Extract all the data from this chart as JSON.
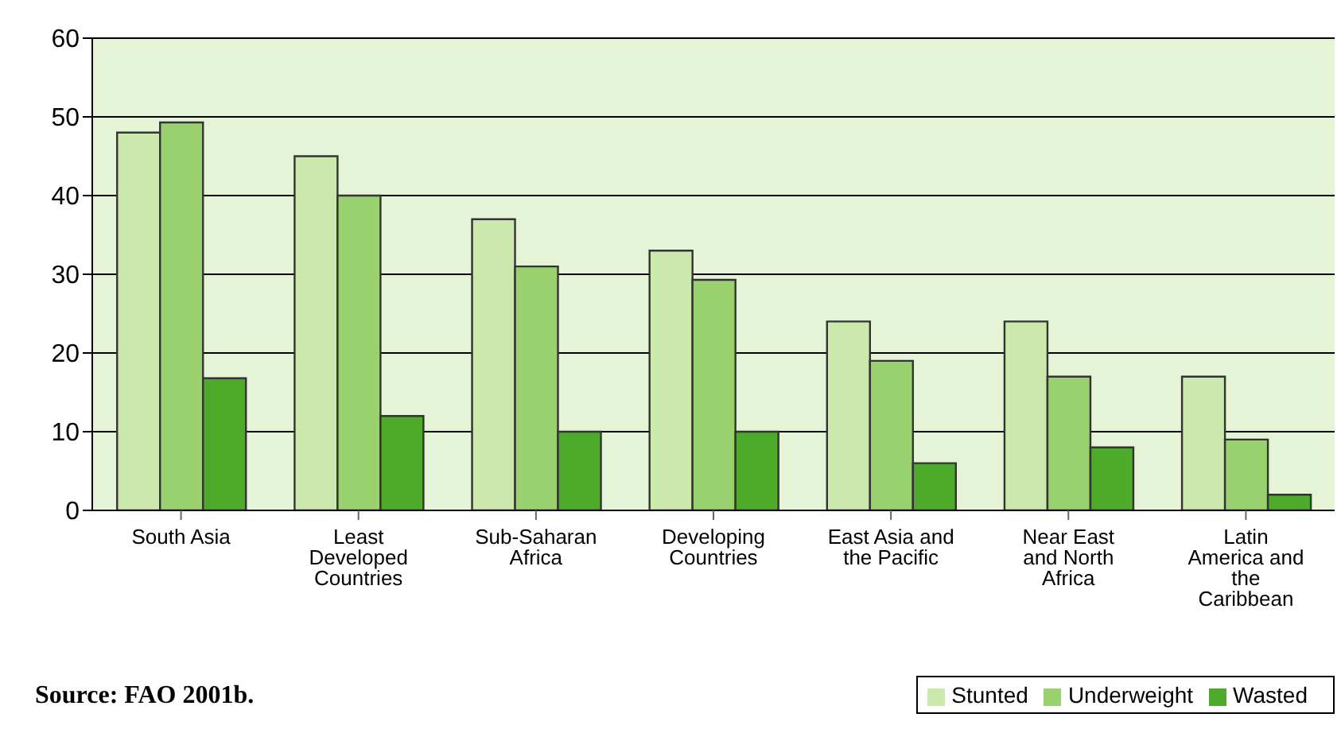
{
  "chart_data": {
    "type": "bar",
    "categories": [
      "South Asia",
      "Least Developed Countries",
      "Sub-Saharan Africa",
      "Developing Countries",
      "East Asia and the Pacific",
      "Near East and North Africa",
      "Latin America and the Caribbean"
    ],
    "series": [
      {
        "name": "Stunted",
        "color": "#cbe8ad",
        "values": [
          48,
          45,
          37,
          33,
          24,
          24,
          17
        ]
      },
      {
        "name": "Underweight",
        "color": "#98d16e",
        "values": [
          49.3,
          40,
          31,
          29.3,
          19,
          17,
          9
        ]
      },
      {
        "name": "Wasted",
        "color": "#4eaa2a",
        "values": [
          16.8,
          12,
          10,
          10,
          6,
          8,
          2
        ]
      }
    ],
    "ylim": [
      0,
      60
    ],
    "yticks": [
      0,
      10,
      20,
      30,
      40,
      50,
      60
    ],
    "grid": "y",
    "legend": "bottom right",
    "annotations": [
      "Source: FAO 2001b."
    ]
  }
}
